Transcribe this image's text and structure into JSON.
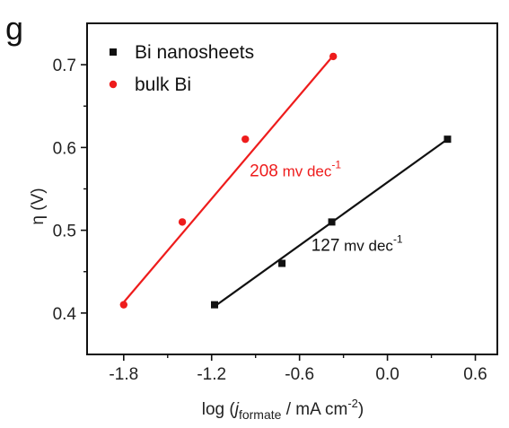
{
  "chart_data": {
    "type": "scatter",
    "panel_label": "g",
    "xlabel": {
      "prefix": "log (",
      "j": "j",
      "sub": "formate",
      "mid": " / mA cm",
      "sup": "-2",
      "suffix": ")"
    },
    "ylabel": "η (V)",
    "xlim": [
      -2.05,
      0.75
    ],
    "ylim": [
      0.35,
      0.75
    ],
    "xticks": [
      -1.8,
      -1.2,
      -0.6,
      0.0,
      0.6
    ],
    "xtick_labels": [
      "-1.8",
      "-1.2",
      "-0.6",
      "0.0",
      "0.6"
    ],
    "yticks": [
      0.4,
      0.5,
      0.6,
      0.7
    ],
    "ytick_labels": [
      "0.4",
      "0.5",
      "0.6",
      "0.7"
    ],
    "legend_position": "top-left",
    "series": [
      {
        "name": "Bi nanosheets",
        "color": "#111111",
        "marker": "square",
        "x": [
          -1.18,
          -0.72,
          -0.38,
          0.41
        ],
        "y": [
          0.41,
          0.46,
          0.51,
          0.61
        ],
        "fit": {
          "x": [
            -1.18,
            0.41
          ],
          "y": [
            0.408,
            0.61
          ]
        },
        "annotation": {
          "value": "127",
          "unit": " mv dec",
          "sup": "-1",
          "x": -0.52,
          "y": 0.475
        }
      },
      {
        "name": "bulk Bi",
        "color": "#ee1c1c",
        "marker": "circle",
        "x": [
          -1.8,
          -1.4,
          -0.97,
          -0.37
        ],
        "y": [
          0.41,
          0.51,
          0.61,
          0.71
        ],
        "fit": {
          "x": [
            -1.8,
            -0.37
          ],
          "y": [
            0.413,
            0.711
          ]
        },
        "annotation": {
          "value": "208",
          "unit": " mv dec",
          "sup": "-1",
          "x": -0.94,
          "y": 0.565
        }
      }
    ]
  }
}
